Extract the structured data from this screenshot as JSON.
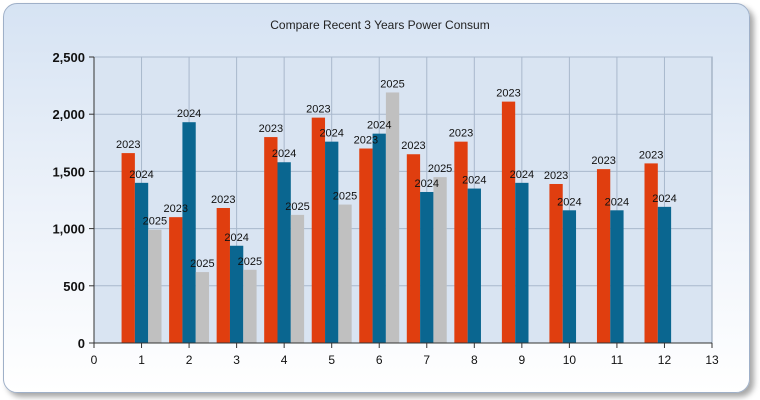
{
  "chart_data": {
    "type": "bar",
    "title": "Compare Recent 3 Years Power Consum",
    "xlabel": "",
    "ylabel": "",
    "xlim": [
      0,
      13
    ],
    "ylim": [
      0,
      2500
    ],
    "x_ticks": [
      "0",
      "1",
      "2",
      "3",
      "4",
      "5",
      "6",
      "7",
      "8",
      "9",
      "10",
      "11",
      "12",
      "13"
    ],
    "y_ticks": [
      "0",
      "500",
      "1,000",
      "1,500",
      "2,000",
      "2,500"
    ],
    "grid": true,
    "categories": [
      1,
      2,
      3,
      4,
      5,
      6,
      7,
      8,
      9,
      10,
      11,
      12
    ],
    "series": [
      {
        "name": "2023",
        "color": "#e03e0f",
        "values": [
          1660,
          1100,
          1180,
          1800,
          1970,
          1700,
          1650,
          1760,
          2110,
          1390,
          1520,
          1570
        ]
      },
      {
        "name": "2024",
        "color": "#0a6690",
        "values": [
          1400,
          1930,
          850,
          1580,
          1760,
          1830,
          1320,
          1350,
          1400,
          1160,
          1160,
          1190
        ]
      },
      {
        "name": "2025",
        "color": "#c0c0c0",
        "values": [
          990,
          620,
          640,
          1120,
          1210,
          2190,
          1450,
          null,
          null,
          null,
          null,
          null
        ]
      }
    ]
  }
}
